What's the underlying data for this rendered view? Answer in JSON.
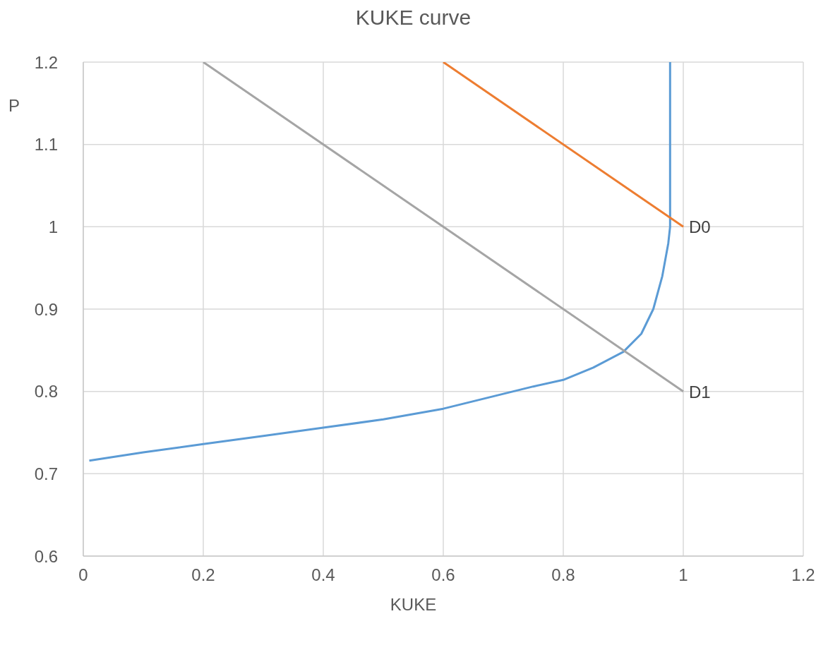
{
  "chart_data": {
    "type": "line",
    "title": "KUKE curve",
    "xlabel": "KUKE",
    "ylabel": "P",
    "xlim": [
      0,
      1.2
    ],
    "xticks": [
      0,
      0.2,
      0.4,
      0.6,
      0.8,
      1,
      1.2
    ],
    "ylim": [
      0.6,
      1.2
    ],
    "yticks": [
      0.6,
      0.7,
      0.8,
      0.9,
      1,
      1.1,
      1.2
    ],
    "grid": true,
    "marker": "none",
    "line_style": "solid",
    "series": [
      {
        "color": "#5b9bd5",
        "x": [
          0.01,
          0.1,
          0.2,
          0.3,
          0.4,
          0.5,
          0.6,
          0.7,
          0.75,
          0.8,
          0.85,
          0.9,
          0.93,
          0.95,
          0.965,
          0.975,
          0.978,
          0.978
        ],
        "values": [
          0.716,
          0.726,
          0.736,
          0.746,
          0.756,
          0.766,
          0.779,
          0.797,
          0.806,
          0.814,
          0.829,
          0.848,
          0.87,
          0.9,
          0.94,
          0.98,
          1.0,
          1.2
        ]
      },
      {
        "name": "D0",
        "color": "#ed7d31",
        "x": [
          0.6,
          1
        ],
        "values": [
          1.2,
          1.0
        ]
      },
      {
        "name": "D1",
        "color": "#a5a5a5",
        "x": [
          0.2,
          1
        ],
        "values": [
          1.2,
          0.8
        ]
      }
    ]
  }
}
